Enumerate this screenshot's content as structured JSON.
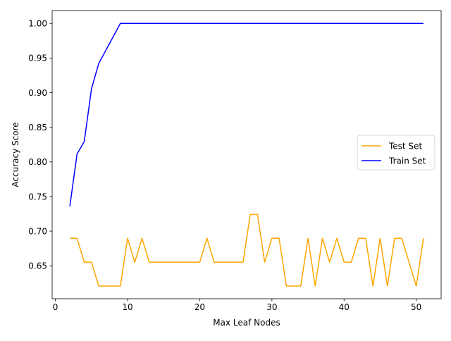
{
  "chart_data": {
    "type": "line",
    "title": "",
    "xlabel": "Max Leaf Nodes",
    "ylabel": "Accuracy Score",
    "xlim": [
      -0.45,
      53.45
    ],
    "ylim": [
      0.6024,
      1.0186
    ],
    "xticks": [
      0,
      10,
      20,
      30,
      40,
      50
    ],
    "xtick_labels": [
      "0",
      "10",
      "20",
      "30",
      "40",
      "50"
    ],
    "yticks": [
      0.65,
      0.7,
      0.75,
      0.8,
      0.85,
      0.9,
      0.95,
      1.0
    ],
    "ytick_labels": [
      "0.65",
      "0.70",
      "0.75",
      "0.80",
      "0.85",
      "0.90",
      "0.95",
      "1.00"
    ],
    "grid": false,
    "legend_position": "center-right",
    "x": [
      2,
      3,
      4,
      5,
      6,
      7,
      8,
      9,
      10,
      11,
      12,
      13,
      14,
      15,
      16,
      17,
      18,
      19,
      20,
      21,
      22,
      23,
      24,
      25,
      26,
      27,
      28,
      29,
      30,
      31,
      32,
      33,
      34,
      35,
      36,
      37,
      38,
      39,
      40,
      41,
      42,
      43,
      44,
      45,
      46,
      47,
      48,
      49,
      50,
      51
    ],
    "series": [
      {
        "name": "Test Set",
        "color": "#ffa500",
        "values": [
          0.6897,
          0.6897,
          0.6552,
          0.6552,
          0.6207,
          0.6207,
          0.6207,
          0.6207,
          0.6897,
          0.6552,
          0.6897,
          0.6552,
          0.6552,
          0.6552,
          0.6552,
          0.6552,
          0.6552,
          0.6552,
          0.6552,
          0.6897,
          0.6552,
          0.6552,
          0.6552,
          0.6552,
          0.6552,
          0.7241,
          0.7241,
          0.6552,
          0.6897,
          0.6897,
          0.6207,
          0.6207,
          0.6207,
          0.6897,
          0.6207,
          0.6897,
          0.6552,
          0.6897,
          0.6552,
          0.6552,
          0.6897,
          0.6897,
          0.6207,
          0.6897,
          0.6207,
          0.6897,
          0.6897,
          0.6552,
          0.6207,
          0.6897
        ]
      },
      {
        "name": "Train Set",
        "color": "#0000ff",
        "values": [
          0.7357,
          0.8114,
          0.8295,
          0.9055,
          0.9421,
          0.9614,
          0.9807,
          1.0,
          1.0,
          1.0,
          1.0,
          1.0,
          1.0,
          1.0,
          1.0,
          1.0,
          1.0,
          1.0,
          1.0,
          1.0,
          1.0,
          1.0,
          1.0,
          1.0,
          1.0,
          1.0,
          1.0,
          1.0,
          1.0,
          1.0,
          1.0,
          1.0,
          1.0,
          1.0,
          1.0,
          1.0,
          1.0,
          1.0,
          1.0,
          1.0,
          1.0,
          1.0,
          1.0,
          1.0,
          1.0,
          1.0,
          1.0,
          1.0,
          1.0,
          1.0
        ]
      }
    ]
  }
}
